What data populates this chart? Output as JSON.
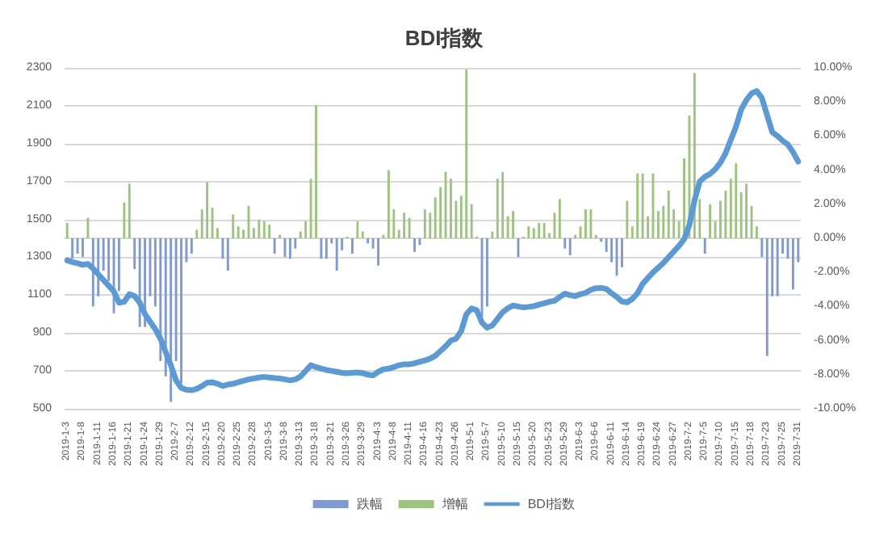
{
  "chart_data": {
    "type": "bar",
    "title": "BDI指数",
    "categories": [
      "2019-1-3",
      null,
      null,
      "2019-1-8",
      null,
      null,
      "2019-1-11",
      null,
      null,
      "2019-1-16",
      null,
      null,
      "2019-1-21",
      null,
      null,
      "2019-1-24",
      null,
      null,
      "2019-1-29",
      null,
      null,
      "2019-2-7",
      null,
      null,
      "2019-2-12",
      null,
      null,
      "2019-2-15",
      null,
      null,
      "2019-2-20",
      null,
      null,
      "2019-2-25",
      null,
      null,
      "2019-2-28",
      null,
      null,
      "2019-3-5",
      null,
      null,
      "2019-3-8",
      null,
      null,
      "2019-3-13",
      null,
      null,
      "2019-3-18",
      null,
      null,
      "2019-3-21",
      null,
      null,
      "2019-3-26",
      null,
      null,
      "2019-3-29",
      null,
      null,
      "2019-4-3",
      null,
      null,
      "2019-4-8",
      null,
      null,
      "2019-4-11",
      null,
      null,
      "2019-4-16",
      null,
      null,
      "2019-4-23",
      null,
      null,
      "2019-4-26",
      null,
      null,
      "2019-5-1",
      null,
      null,
      "2019-5-7",
      null,
      null,
      "2019-5-10",
      null,
      null,
      "2019-5-15",
      null,
      null,
      "2019-5-20",
      null,
      null,
      "2019-5-23",
      null,
      null,
      "2019-5-29",
      null,
      null,
      "2019-6-3",
      null,
      null,
      "2019-6-6",
      null,
      null,
      "2019-6-11",
      null,
      null,
      "2019-6-14",
      null,
      null,
      "2019-6-19",
      null,
      null,
      "2019-6-24",
      null,
      null,
      "2019-6-27",
      null,
      null,
      "2019-7-2",
      null,
      null,
      "2019-7-5",
      null,
      null,
      "2019-7-10",
      null,
      null,
      "2019-7-15",
      null,
      null,
      "2019-7-18",
      null,
      null,
      "2019-7-23",
      null,
      null,
      "2019-7-25",
      null,
      null,
      "2019-7-31"
    ],
    "series": [
      {
        "name": "跌幅",
        "axis": "y2",
        "color": "#7f9ad3",
        "values": [
          null,
          -1.2,
          -0.9,
          -1.1,
          null,
          -4.0,
          -3.4,
          -1.9,
          -2.5,
          -4.4,
          -3.1,
          null,
          null,
          -1.8,
          -5.2,
          -5.2,
          -3.4,
          -4.0,
          -7.2,
          -8.1,
          -9.6,
          -7.2,
          -8.5,
          -1.4,
          -0.9,
          null,
          null,
          null,
          null,
          null,
          -1.2,
          -1.9,
          null,
          null,
          null,
          null,
          null,
          null,
          null,
          null,
          -0.9,
          null,
          -1.1,
          -1.2,
          -0.6,
          null,
          null,
          null,
          null,
          -1.2,
          -1.2,
          -0.3,
          -1.9,
          -0.7,
          null,
          -0.9,
          null,
          null,
          -0.3,
          -0.6,
          -1.6,
          null,
          null,
          null,
          null,
          null,
          null,
          -0.8,
          -0.4,
          null,
          null,
          null,
          null,
          null,
          null,
          null,
          null,
          null,
          null,
          null,
          -4.6,
          -4.0,
          null,
          null,
          null,
          null,
          null,
          -1.1,
          null,
          null,
          null,
          null,
          null,
          null,
          null,
          null,
          -0.6,
          -1.0,
          null,
          null,
          null,
          null,
          null,
          -0.2,
          -0.8,
          -1.4,
          -2.2,
          -1.7,
          null,
          null,
          null,
          null,
          null,
          null,
          null,
          null,
          null,
          null,
          null,
          null,
          null,
          null,
          null,
          -0.9,
          null,
          null,
          null,
          null,
          null,
          null,
          null,
          null,
          null,
          null,
          -1.1,
          -6.9,
          -3.4,
          -3.4,
          -0.9,
          -1.2,
          -3.0,
          -1.4
        ]
      },
      {
        "name": "增幅",
        "axis": "y2",
        "color": "#9cc47e",
        "values": [
          0.9,
          null,
          null,
          null,
          1.2,
          null,
          null,
          null,
          null,
          null,
          null,
          2.1,
          3.2,
          null,
          null,
          null,
          null,
          null,
          null,
          null,
          null,
          null,
          null,
          null,
          null,
          0.5,
          1.7,
          3.3,
          1.8,
          0.6,
          null,
          null,
          1.4,
          0.7,
          0.5,
          1.9,
          0.6,
          1.1,
          1.0,
          0.8,
          null,
          0.2,
          null,
          null,
          null,
          0.4,
          1.0,
          3.5,
          7.8,
          null,
          null,
          null,
          null,
          null,
          0.1,
          null,
          1.0,
          0.4,
          null,
          null,
          null,
          0.2,
          4.0,
          1.7,
          0.5,
          1.5,
          1.2,
          null,
          null,
          1.7,
          1.5,
          2.4,
          3.0,
          3.9,
          3.5,
          2.2,
          2.5,
          9.9,
          2.0,
          0.1,
          null,
          null,
          0.4,
          3.5,
          3.9,
          1.3,
          1.6,
          null,
          0.1,
          0.7,
          0.6,
          0.9,
          0.9,
          0.3,
          1.5,
          2.3,
          null,
          null,
          0.2,
          0.7,
          1.7,
          1.7,
          0.2,
          null,
          null,
          null,
          null,
          null,
          2.2,
          0.7,
          3.8,
          3.8,
          1.3,
          3.8,
          1.6,
          1.9,
          2.8,
          1.7,
          1.0,
          4.7,
          7.2,
          9.7,
          2.3,
          null,
          2.0,
          1.0,
          2.2,
          2.8,
          3.5,
          4.4,
          2.7,
          3.2,
          1.9,
          0.7,
          null,
          null,
          null,
          null,
          null,
          null,
          null,
          null
        ]
      },
      {
        "name": "BDI指数",
        "type": "line",
        "color": "#5b9bd5",
        "values": [
          1283,
          1275,
          1268,
          1260,
          1265,
          1240,
          1210,
          1180,
          1150,
          1120,
          1060,
          1065,
          1105,
          1095,
          1060,
          1000,
          960,
          920,
          870,
          800,
          730,
          650,
          610,
          600,
          598,
          605,
          620,
          638,
          640,
          632,
          620,
          628,
          632,
          640,
          648,
          655,
          660,
          665,
          668,
          665,
          662,
          660,
          655,
          650,
          655,
          670,
          700,
          730,
          720,
          712,
          705,
          700,
          695,
          690,
          688,
          690,
          692,
          688,
          680,
          676,
          695,
          708,
          712,
          720,
          730,
          735,
          735,
          740,
          748,
          755,
          765,
          780,
          805,
          830,
          860,
          870,
          910,
          1000,
          1030,
          1020,
          955,
          928,
          940,
          975,
          1010,
          1031,
          1045,
          1040,
          1035,
          1038,
          1042,
          1050,
          1057,
          1065,
          1070,
          1090,
          1108,
          1100,
          1095,
          1105,
          1112,
          1128,
          1137,
          1138,
          1132,
          1110,
          1090,
          1066,
          1062,
          1080,
          1110,
          1160,
          1190,
          1220,
          1245,
          1270,
          1300,
          1330,
          1360,
          1395,
          1470,
          1600,
          1700,
          1725,
          1740,
          1765,
          1800,
          1850,
          1920,
          1990,
          2080,
          2130,
          2165,
          2178,
          2140,
          2050,
          1960,
          1940,
          1915,
          1895,
          1855,
          1805
        ]
      }
    ],
    "ylim": [
      500,
      2300
    ],
    "yticks": [
      500,
      700,
      900,
      1100,
      1300,
      1500,
      1700,
      1900,
      2100,
      2300
    ],
    "y2lim": [
      -10,
      10
    ],
    "y2ticks": [
      {
        "value": -10,
        "label": "-10.00%"
      },
      {
        "value": -8,
        "label": "-8.00%"
      },
      {
        "value": -6,
        "label": "-6.00%"
      },
      {
        "value": -4,
        "label": "-4.00%"
      },
      {
        "value": -2,
        "label": "-2.00%"
      },
      {
        "value": 0,
        "label": "0.00%"
      },
      {
        "value": 2,
        "label": "2.00%"
      },
      {
        "value": 4,
        "label": "4.00%"
      },
      {
        "value": 6,
        "label": "6.00%"
      },
      {
        "value": 8,
        "label": "8.00%"
      },
      {
        "value": 10,
        "label": "10.00%"
      }
    ],
    "grid": "y",
    "legend": "bottom",
    "marker": "none",
    "line_style": "solid"
  }
}
